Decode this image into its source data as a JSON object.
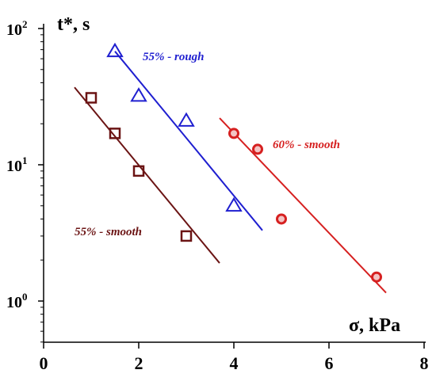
{
  "chart_data": {
    "type": "scatter",
    "ylabel": "t*, s",
    "xlabel": "σ, kPa",
    "xlim": [
      0,
      8
    ],
    "ylim": [
      0.5,
      100
    ],
    "yscale": "log",
    "x_ticks": [
      "0",
      "2",
      "4",
      "6",
      "8"
    ],
    "y_ticks": [
      {
        "base": "10",
        "exp": "2",
        "value": 100
      },
      {
        "base": "10",
        "exp": "1",
        "value": 10
      },
      {
        "base": "10",
        "exp": "0",
        "value": 1
      }
    ],
    "grid": false,
    "series": [
      {
        "name": "55% - rough",
        "color": "#1f1fd0",
        "marker": "triangle",
        "points": [
          [
            1.5,
            68
          ],
          [
            2.0,
            32
          ],
          [
            3.0,
            21
          ],
          [
            4.0,
            5.0
          ]
        ],
        "fit": [
          [
            1.5,
            68
          ],
          [
            4.6,
            3.3
          ]
        ]
      },
      {
        "name": "55% - smooth",
        "color": "#6b1414",
        "marker": "square",
        "points": [
          [
            1.0,
            31
          ],
          [
            1.5,
            17
          ],
          [
            2.0,
            9.0
          ],
          [
            3.0,
            3.0
          ]
        ],
        "fit": [
          [
            0.65,
            37
          ],
          [
            3.7,
            1.9
          ]
        ]
      },
      {
        "name": "60% - smooth",
        "color": "#d62020",
        "marker": "circle",
        "points": [
          [
            4.0,
            17
          ],
          [
            4.5,
            13
          ],
          [
            5.0,
            4.0
          ],
          [
            7.0,
            1.5
          ]
        ],
        "fit": [
          [
            3.7,
            22
          ],
          [
            7.2,
            1.15
          ]
        ]
      }
    ]
  }
}
